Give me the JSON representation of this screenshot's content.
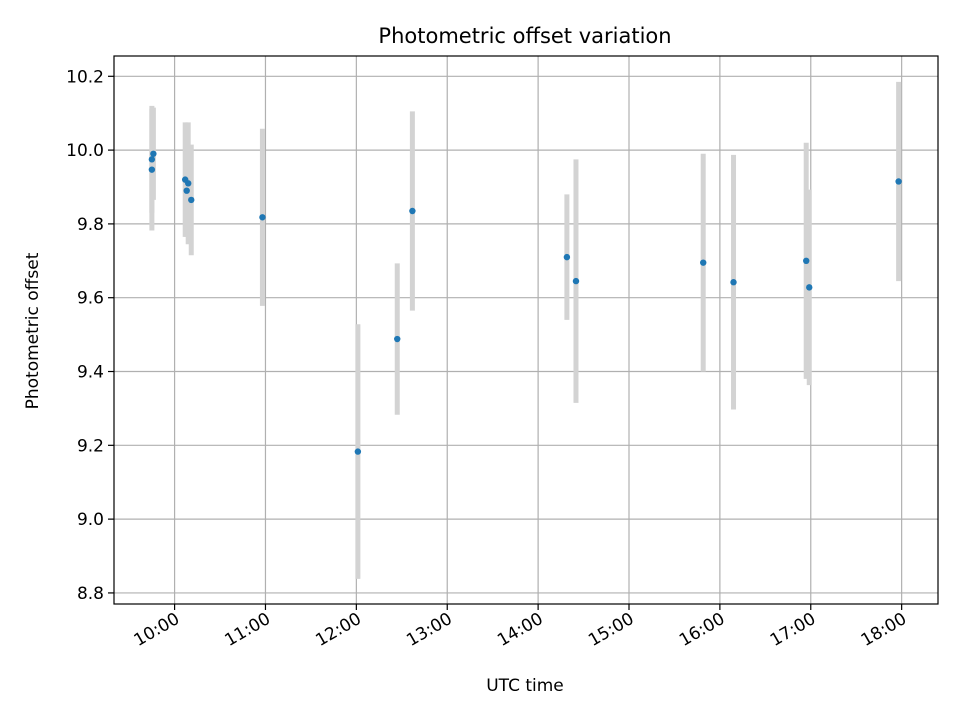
{
  "chart_data": {
    "type": "scatter",
    "title": "Photometric offset variation",
    "xlabel": "UTC time",
    "ylabel": "Photometric offset",
    "x_axis_type": "time",
    "xlim": [
      "09:20",
      "18:24"
    ],
    "ylim": [
      8.77,
      10.255
    ],
    "x_ticks": [
      "10:00",
      "11:00",
      "12:00",
      "13:00",
      "14:00",
      "15:00",
      "16:00",
      "17:00",
      "18:00"
    ],
    "y_ticks": [
      8.8,
      9.0,
      9.2,
      9.4,
      9.6,
      9.8,
      10.0,
      10.2
    ],
    "y_tick_labels": [
      "8.8",
      "9.0",
      "9.2",
      "9.4",
      "9.6",
      "9.8",
      "10.0",
      "10.2"
    ],
    "grid": true,
    "point_color": "#1f77b4",
    "errorbar_color": "#d3d3d3",
    "points": [
      {
        "time": "09:45",
        "y": 9.975,
        "err": 0.145
      },
      {
        "time": "09:45",
        "y": 9.947,
        "err": 0.165
      },
      {
        "time": "09:46",
        "y": 9.99,
        "err": 0.125
      },
      {
        "time": "10:07",
        "y": 9.92,
        "err": 0.155
      },
      {
        "time": "10:08",
        "y": 9.89,
        "err": 0.125
      },
      {
        "time": "10:09",
        "y": 9.91,
        "err": 0.165
      },
      {
        "time": "10:11",
        "y": 9.865,
        "err": 0.15
      },
      {
        "time": "10:58",
        "y": 9.818,
        "err": 0.24
      },
      {
        "time": "12:01",
        "y": 9.183,
        "err": 0.345
      },
      {
        "time": "12:27",
        "y": 9.488,
        "err": 0.205
      },
      {
        "time": "12:37",
        "y": 9.835,
        "err": 0.27
      },
      {
        "time": "14:19",
        "y": 9.71,
        "err": 0.17
      },
      {
        "time": "14:25",
        "y": 9.645,
        "err": 0.33
      },
      {
        "time": "15:49",
        "y": 9.695,
        "err": 0.295
      },
      {
        "time": "16:09",
        "y": 9.642,
        "err": 0.345
      },
      {
        "time": "16:57",
        "y": 9.7,
        "err": 0.32
      },
      {
        "time": "16:59",
        "y": 9.628,
        "err": 0.265
      },
      {
        "time": "17:58",
        "y": 9.915,
        "err": 0.27
      }
    ]
  }
}
